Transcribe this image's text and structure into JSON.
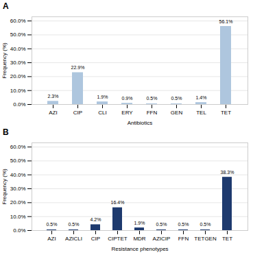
{
  "chart_data": [
    {
      "type": "bar",
      "title": "A",
      "categories": [
        "AZI",
        "CIP",
        "CLI",
        "ERY",
        "FFN",
        "GEN",
        "TEL",
        "TET"
      ],
      "values": [
        2.3,
        22.9,
        1.9,
        0.9,
        0.5,
        0.5,
        1.4,
        56.1
      ],
      "value_labels": [
        "2.3%",
        "22.9%",
        "1.9%",
        "0.9%",
        "0.5%",
        "0.5%",
        "1.4%",
        "56.1%"
      ],
      "color": "#aec6de",
      "xlabel": "Antibiotics",
      "ylabel": "Frequency (%)",
      "ylim": [
        0,
        63
      ],
      "yticks": [
        {
          "value": 0,
          "label": "0.0%"
        },
        {
          "value": 10,
          "label": "10.0%"
        },
        {
          "value": 20,
          "label": "20.0%"
        },
        {
          "value": 30,
          "label": "30.0%"
        },
        {
          "value": 40,
          "label": "40.0%"
        },
        {
          "value": 50,
          "label": "50.0%"
        },
        {
          "value": 60,
          "label": "60.0%"
        }
      ],
      "grid": true,
      "data_labels": true
    },
    {
      "type": "bar",
      "title": "B",
      "categories": [
        "AZI",
        "AZICLI",
        "CIP",
        "CIPTET",
        "MDR",
        "AZICIP",
        "FFN",
        "TETGEN",
        "TET"
      ],
      "values": [
        0.5,
        0.5,
        4.2,
        16.4,
        1.9,
        0.5,
        0.5,
        0.5,
        38.3
      ],
      "value_labels": [
        "0.5%",
        "0.5%",
        "4.2%",
        "16.4%",
        "1.9%",
        "0.5%",
        "0.5%",
        "0.5%",
        "38.3%"
      ],
      "color": "#1e3a6e",
      "xlabel": "Resistance phenotypes",
      "ylabel": "Frequency (%)",
      "ylim": [
        0,
        63
      ],
      "yticks": [
        {
          "value": 0,
          "label": "0.0%"
        },
        {
          "value": 10,
          "label": "10.0%"
        },
        {
          "value": 20,
          "label": "20.0%"
        },
        {
          "value": 30,
          "label": "30.0%"
        },
        {
          "value": 40,
          "label": "40.0%"
        },
        {
          "value": 50,
          "label": "50.0%"
        },
        {
          "value": 60,
          "label": "60.0%"
        }
      ],
      "grid": true,
      "data_labels": true
    }
  ]
}
